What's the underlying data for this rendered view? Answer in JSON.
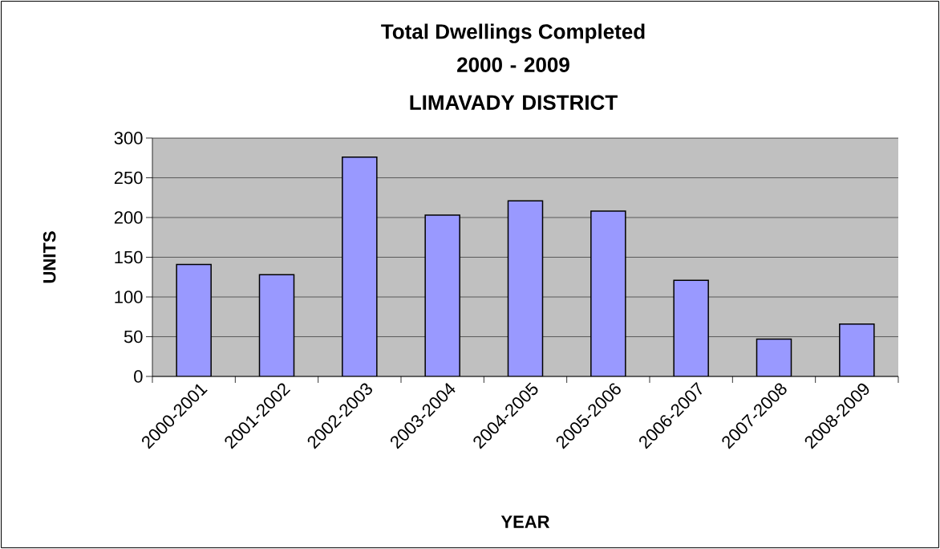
{
  "chart_data": {
    "type": "bar",
    "title": "Total Dwellings Completed",
    "subtitle": "2000 - 2009 LIMAVADY DISTRICT",
    "xlabel": "YEAR",
    "ylabel": "UNITS",
    "categories": [
      "2000-2001",
      "2001-2002",
      "2002-2003",
      "2003-2004",
      "2004-2005",
      "2005-2006",
      "2006-2007",
      "2007-2008",
      "2008-2009"
    ],
    "values": [
      141,
      128,
      276,
      203,
      221,
      208,
      121,
      47,
      66
    ],
    "color": "#9999ff",
    "ylim": [
      0,
      300
    ],
    "yticks": [
      0,
      50,
      100,
      150,
      200,
      250,
      300
    ],
    "grid": "y"
  }
}
